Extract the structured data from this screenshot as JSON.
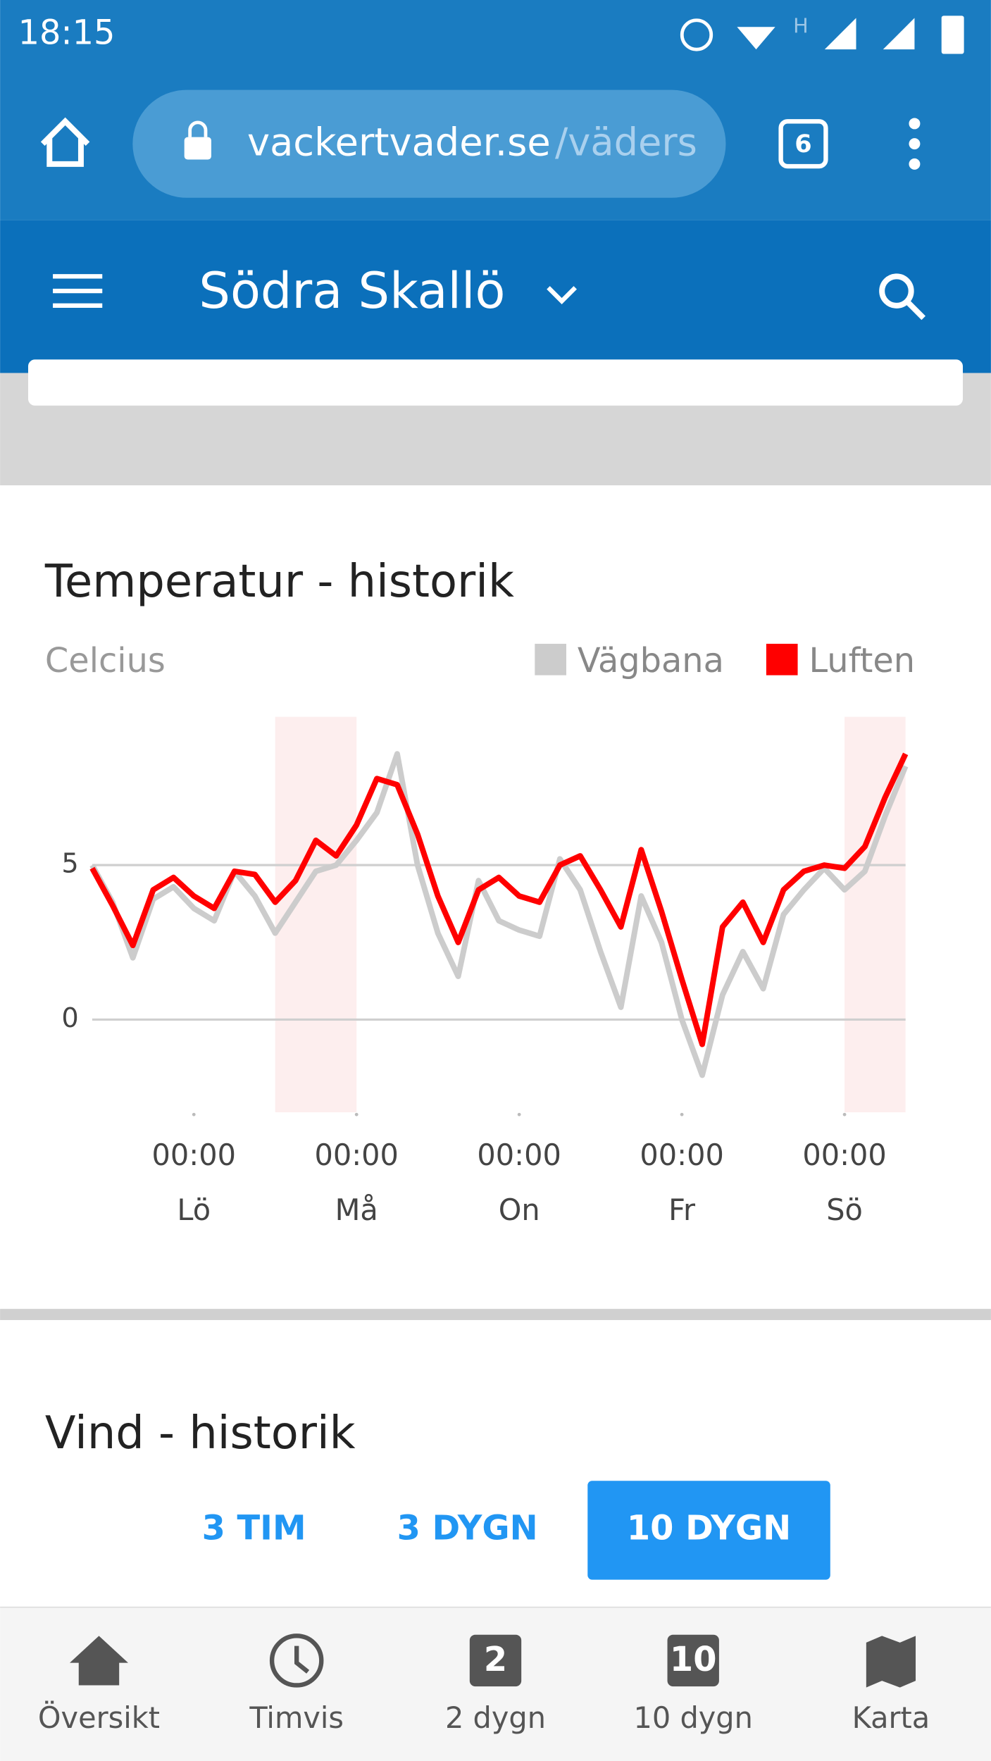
{
  "status_bar": {
    "time": "18:15"
  },
  "browser": {
    "url_domain": "vackertvader.se",
    "url_path": "/väders",
    "tab_count": 6
  },
  "app_bar": {
    "title": "Södra Skallö"
  },
  "chart_data": {
    "type": "line",
    "title": "Temperatur - historik",
    "y_label": "Celcius",
    "x": [
      0,
      6,
      12,
      18,
      24,
      30,
      36,
      42,
      48,
      54,
      60,
      66,
      72,
      78,
      84,
      90,
      96,
      102,
      108,
      114,
      120,
      126,
      132,
      138,
      144,
      150,
      156,
      162,
      168,
      174,
      180,
      186,
      192,
      198,
      204,
      210,
      216,
      222,
      228,
      234,
      240
    ],
    "series": [
      {
        "name": "Vägbana",
        "color": "#cccccc",
        "values": [
          5.0,
          3.8,
          2.0,
          3.9,
          4.3,
          3.6,
          3.2,
          4.8,
          4.0,
          2.8,
          3.8,
          4.8,
          5.0,
          5.8,
          6.7,
          8.6,
          5.0,
          2.8,
          1.4,
          4.5,
          3.2,
          2.9,
          2.7,
          5.2,
          4.2,
          2.2,
          0.4,
          4.0,
          2.5,
          0.0,
          -1.8,
          0.8,
          2.2,
          1.0,
          3.4,
          4.2,
          4.9,
          4.2,
          4.8,
          6.6,
          8.2
        ]
      },
      {
        "name": "Luften",
        "color": "#ff0000",
        "values": [
          4.9,
          3.7,
          2.4,
          4.2,
          4.6,
          4.0,
          3.6,
          4.8,
          4.7,
          3.8,
          4.5,
          5.8,
          5.3,
          6.3,
          7.8,
          7.6,
          6.0,
          4.0,
          2.5,
          4.2,
          4.6,
          4.0,
          3.8,
          5.0,
          5.3,
          4.2,
          3.0,
          5.5,
          3.5,
          1.3,
          -0.8,
          3.0,
          3.8,
          2.5,
          4.2,
          4.8,
          5.0,
          4.9,
          5.6,
          7.2,
          8.6
        ]
      }
    ],
    "xlim": [
      0,
      240
    ],
    "ylim": [
      -3,
      9.8
    ],
    "yticks": [
      0,
      5
    ],
    "xticks": [
      {
        "value": 30,
        "label": "00:00"
      },
      {
        "value": 78,
        "label": "00:00"
      },
      {
        "value": 126,
        "label": "00:00"
      },
      {
        "value": 174,
        "label": "00:00"
      },
      {
        "value": 222,
        "label": "00:00"
      }
    ],
    "xtick_days": [
      "Lö",
      "Må",
      "On",
      "Fr",
      "Sö"
    ],
    "shaded_ranges": [
      [
        54,
        78
      ],
      [
        222,
        240
      ]
    ],
    "shade_color": "#fdeeee",
    "grid": true,
    "legend": "top-right"
  },
  "next_section": {
    "title": "Vind - historik"
  },
  "range_buttons": [
    {
      "label": "3 TIM",
      "active": false
    },
    {
      "label": "3 DYGN",
      "active": false
    },
    {
      "label": "10 DYGN",
      "active": true
    }
  ],
  "bottom_nav": [
    {
      "label": "Översikt"
    },
    {
      "label": "Timvis"
    },
    {
      "label": "2 dygn",
      "badge": 2
    },
    {
      "label": "10 dygn",
      "badge": 10
    },
    {
      "label": "Karta"
    }
  ]
}
